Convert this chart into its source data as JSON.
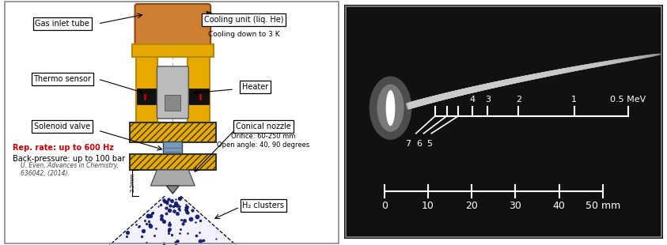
{
  "fig_width": 8.43,
  "fig_height": 3.1,
  "bg_color": "#ffffff",
  "left_panel": {
    "labels": {
      "gas_inlet": "Gas inlet tube",
      "thermo": "Thermo sensor",
      "solenoid": "Solenoid valve",
      "rep_rate": "Rep. rate: up to 600 Hz",
      "back_pressure": "Back-pressure: up to 100 bar",
      "citation": "U. Even, Advances in Chemistry,\n636042, (2014).",
      "cooling": "Cooling unit (liq. He)",
      "cooling_sub": "Cooling down to 3 K",
      "heater": "Heater",
      "conical": "Conical nozzle",
      "conical_sub": "Orifice: 60-250 mm\nOpen angle: 40, 90 degrees",
      "h2": "H₂ clusters",
      "dim": "2.2mm"
    },
    "colors": {
      "rep_rate": "#cc0000",
      "gold": "#e8aa00",
      "dark_gold": "#b8860b",
      "copper": "#cd7f32",
      "blue_dot": "#1a237e",
      "gray_sensor": "#aaaaaa"
    }
  },
  "right_panel": {
    "bg_color": "#111111"
  }
}
